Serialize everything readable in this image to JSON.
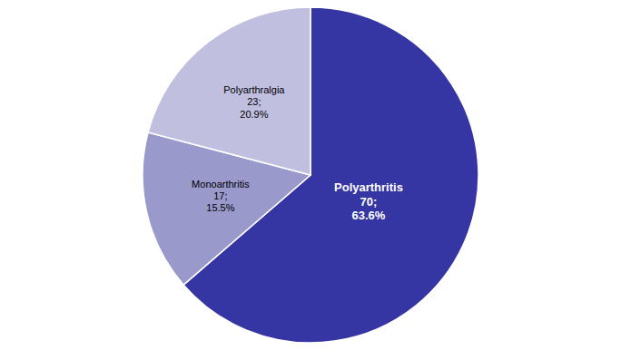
{
  "chart_data": {
    "type": "pie",
    "categories": [
      "Polyarthritis",
      "Monoarthritis",
      "Polyarthralgia"
    ],
    "values": [
      70,
      17,
      23
    ],
    "value_labels": [
      "70;",
      "17;",
      "23;"
    ],
    "percentages": [
      63.6,
      15.5,
      20.9
    ],
    "percentage_labels": [
      "63.6%",
      "15.5%",
      "20.9%"
    ],
    "colors": [
      "#3535a3",
      "#9999cc",
      "#c0bfe0"
    ],
    "data_labels": true
  }
}
